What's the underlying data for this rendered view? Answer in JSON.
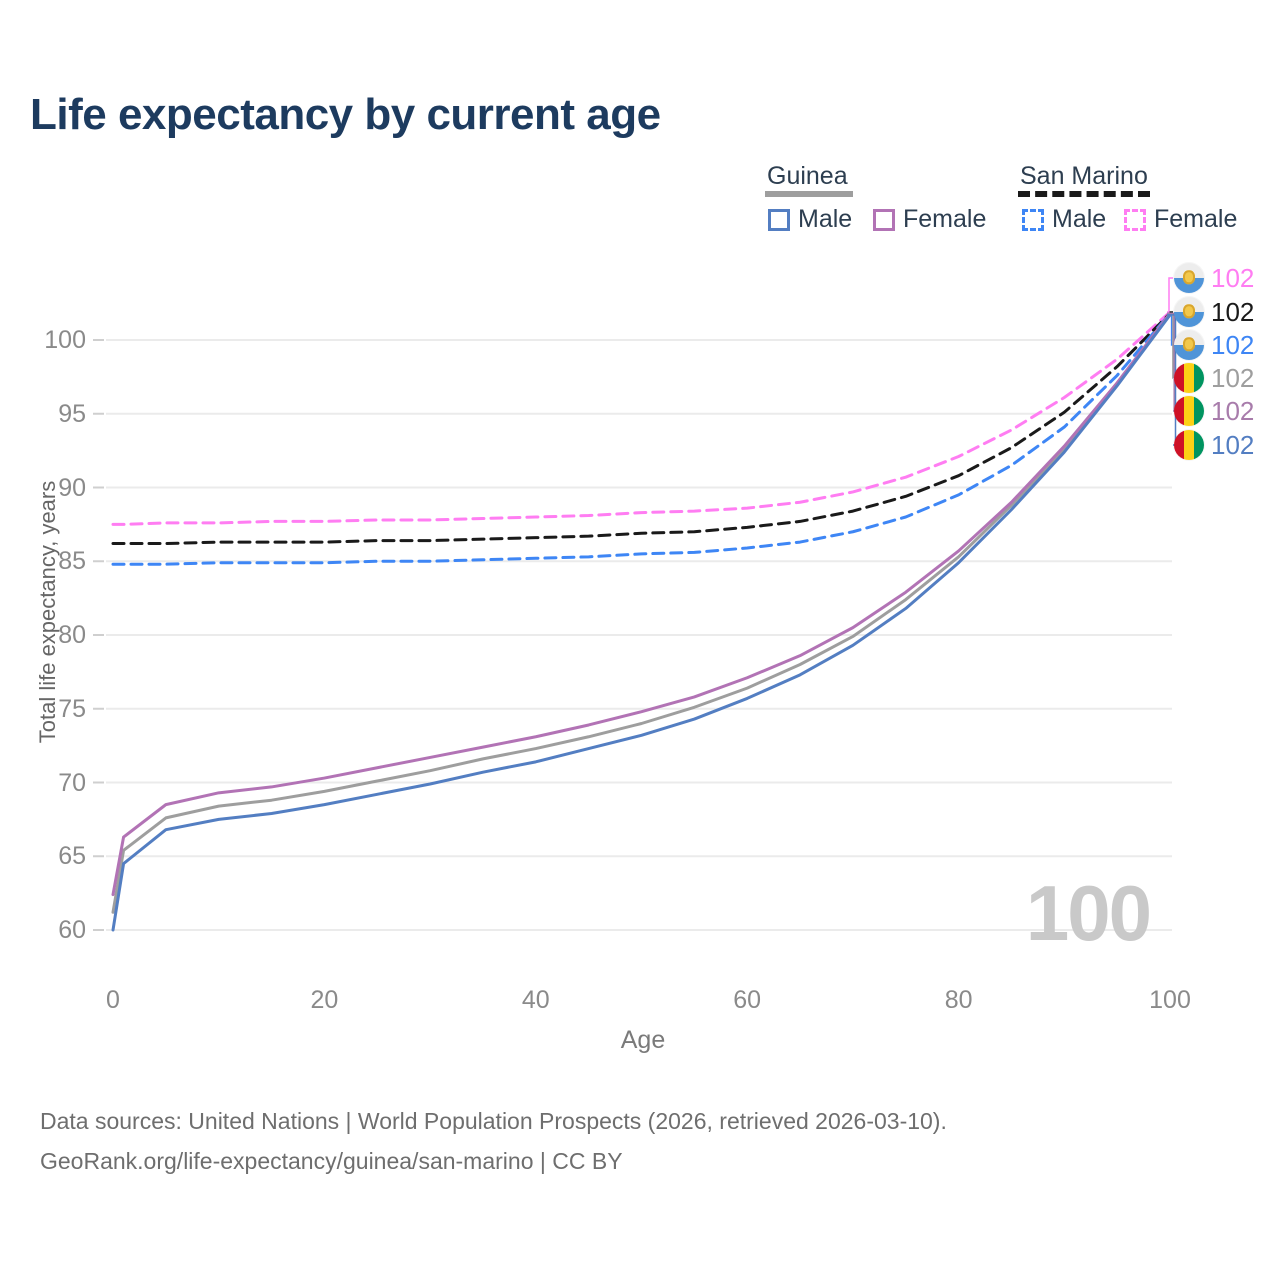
{
  "header": {
    "title": "Life expectancy by current age"
  },
  "legend": {
    "groups": [
      {
        "label": "Guinea",
        "line_style": "solid",
        "underline_color": "#9e9e9e",
        "items": [
          {
            "label": "Male",
            "color": "#537ec2",
            "dash": false
          },
          {
            "label": "Female",
            "color": "#b273b5",
            "dash": false
          }
        ]
      },
      {
        "label": "San Marino",
        "line_style": "dashed",
        "underline_color": "#1a1a1a",
        "items": [
          {
            "label": "Male",
            "color": "#3e86f5",
            "dash": true
          },
          {
            "label": "Female",
            "color": "#ff7df2",
            "dash": true
          }
        ]
      }
    ]
  },
  "chart_data": {
    "type": "line",
    "title": "Life expectancy by current age",
    "xlabel": "Age",
    "ylabel": "Total life expectancy, years",
    "xlim": [
      0,
      100
    ],
    "ylim": [
      60,
      102
    ],
    "xticks": [
      0,
      20,
      40,
      60,
      80,
      100
    ],
    "yticks": [
      60,
      65,
      70,
      75,
      80,
      85,
      90,
      95,
      100
    ],
    "grid": "horizontal",
    "legend_position": "top-right",
    "watermark": "100",
    "x": [
      0,
      1,
      5,
      10,
      15,
      20,
      25,
      30,
      35,
      40,
      45,
      50,
      55,
      60,
      65,
      70,
      75,
      80,
      85,
      90,
      95,
      100
    ],
    "series": [
      {
        "name": "San Marino Female",
        "country": "San Marino",
        "sex": "Female",
        "color": "#ff7df2",
        "dash": true,
        "values": [
          87.5,
          87.5,
          87.6,
          87.6,
          87.7,
          87.7,
          87.8,
          87.8,
          87.9,
          88.0,
          88.1,
          88.3,
          88.4,
          88.6,
          89.0,
          89.7,
          90.7,
          92.1,
          93.9,
          96.1,
          98.7,
          101.9
        ]
      },
      {
        "name": "San Marino Both sexes",
        "country": "San Marino",
        "sex": "Both",
        "color": "#1a1a1a",
        "dash": true,
        "values": [
          86.2,
          86.2,
          86.2,
          86.3,
          86.3,
          86.3,
          86.4,
          86.4,
          86.5,
          86.6,
          86.7,
          86.9,
          87.0,
          87.3,
          87.7,
          88.4,
          89.4,
          90.8,
          92.7,
          95.1,
          98.2,
          101.8
        ]
      },
      {
        "name": "San Marino Male",
        "country": "San Marino",
        "sex": "Male",
        "color": "#3e86f5",
        "dash": true,
        "values": [
          84.8,
          84.8,
          84.8,
          84.9,
          84.9,
          84.9,
          85.0,
          85.0,
          85.1,
          85.2,
          85.3,
          85.5,
          85.6,
          85.9,
          86.3,
          87.0,
          88.0,
          89.5,
          91.5,
          94.1,
          97.6,
          101.8
        ]
      },
      {
        "name": "Guinea Both sexes",
        "country": "Guinea",
        "sex": "Both",
        "color": "#9e9e9e",
        "dash": false,
        "values": [
          61.2,
          65.4,
          67.6,
          68.4,
          68.8,
          69.4,
          70.1,
          70.8,
          71.6,
          72.3,
          73.1,
          74.0,
          75.1,
          76.4,
          78.0,
          79.9,
          82.4,
          85.3,
          88.8,
          92.6,
          97.0,
          101.8
        ]
      },
      {
        "name": "Guinea Female",
        "country": "Guinea",
        "sex": "Female",
        "color": "#b273b5",
        "dash": false,
        "values": [
          62.4,
          66.3,
          68.5,
          69.3,
          69.7,
          70.3,
          71.0,
          71.7,
          72.4,
          73.1,
          73.9,
          74.8,
          75.8,
          77.1,
          78.6,
          80.5,
          82.9,
          85.7,
          89.0,
          92.8,
          97.1,
          101.8
        ]
      },
      {
        "name": "Guinea Male",
        "country": "Guinea",
        "sex": "Male",
        "color": "#537ec2",
        "dash": false,
        "values": [
          60.0,
          64.5,
          66.8,
          67.5,
          67.9,
          68.5,
          69.2,
          69.9,
          70.7,
          71.4,
          72.3,
          73.2,
          74.3,
          75.7,
          77.3,
          79.3,
          81.8,
          84.9,
          88.5,
          92.4,
          96.9,
          101.7
        ]
      }
    ],
    "end_labels": [
      {
        "value": "102",
        "color": "#ff7df2",
        "flag": "san-marino"
      },
      {
        "value": "102",
        "color": "#1a1a1a",
        "flag": "san-marino"
      },
      {
        "value": "102",
        "color": "#3e86f5",
        "flag": "san-marino"
      },
      {
        "value": "102",
        "color": "#9e9e9e",
        "flag": "guinea"
      },
      {
        "value": "102",
        "color": "#a87cab",
        "flag": "guinea"
      },
      {
        "value": "102",
        "color": "#537ec2",
        "flag": "guinea"
      }
    ]
  },
  "footer": {
    "line1": "Data sources: United Nations | World Population Prospects (2026, retrieved 2026-03-10).",
    "line2": "GeoRank.org/life-expectancy/guinea/san-marino | CC BY"
  }
}
